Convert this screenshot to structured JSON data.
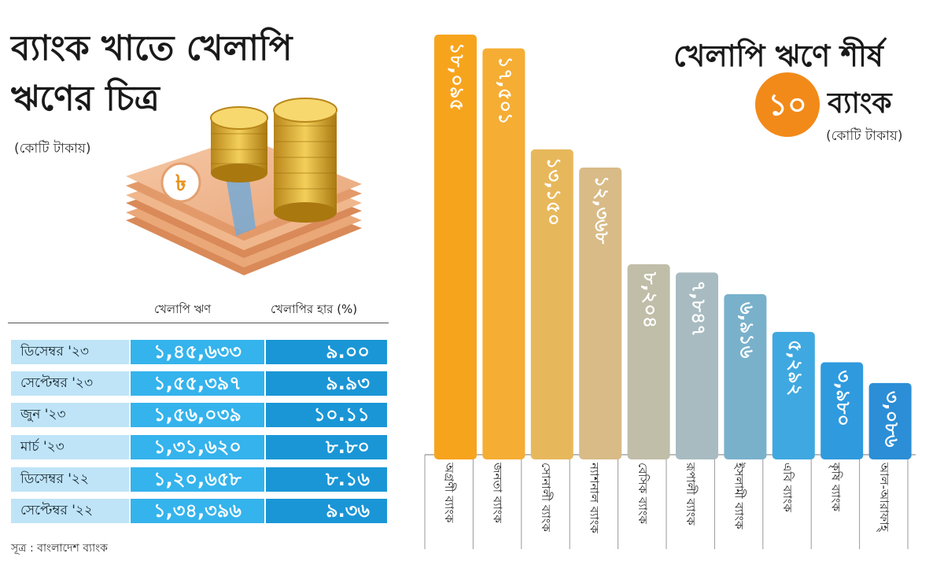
{
  "left": {
    "title_line1": "ব্যাংক খাতে খেলাপি",
    "title_line2": "ঋণের চিত্র",
    "unit": "(কোটি টাকায়)",
    "money_symbol": "৳",
    "col_amount": "খেলাপি ঋণ",
    "col_rate": "খেলাপির হার (%)",
    "rows": [
      {
        "period": "ডিসেম্বর '২৩",
        "amount": "১,৪৫,৬৩৩",
        "rate": "৯.০০"
      },
      {
        "period": "সেপ্টেম্বর '২৩",
        "amount": "১,৫৫,৩৯৭",
        "rate": "৯.৯৩"
      },
      {
        "period": "জুন '২৩",
        "amount": "১,৫৬,০৩৯",
        "rate": "১০.১১"
      },
      {
        "period": "মার্চ '২৩",
        "amount": "১,৩১,৬২০",
        "rate": "৮.৮০"
      },
      {
        "period": "ডিসেম্বর '২২",
        "amount": "১,২০,৬৫৮",
        "rate": "৮.১৬"
      },
      {
        "period": "সেপ্টেম্বর '২২",
        "amount": "১,৩৪,৩৯৬",
        "rate": "৯.৩৬"
      }
    ],
    "source": "সূত্র : বাংলাদেশ ব্যাংক"
  },
  "right": {
    "title_line1": "খেলাপি ঋণে শীর্ষ",
    "badge": "১০",
    "title_word": "ব্যাংক",
    "unit": "(কোটি টাকায়)"
  },
  "colors": {
    "table_period_bg": "#bfe4f7",
    "table_amount_bg": "#35b3ec",
    "table_rate_bg": "#1a96d6",
    "badge_orange": "#f28a1a"
  },
  "chart_data": {
    "type": "bar",
    "categories": [
      "অগ্রণী ব্যাংক",
      "জনতা ব্যাংক",
      "সোনালী ব্যাংক",
      "ন্যাশনাল ব্যাংক",
      "বেসিক ব্যাংক",
      "রূপালী ব্যাংক",
      "ইসলামী ব্যাংক",
      "এবি ব্যাংক",
      "কৃষি ব্যাংক",
      "আল-আরাফাহ্"
    ],
    "values": [
      18095,
      17501,
      13150,
      12368,
      8204,
      7847,
      6916,
      5292,
      3980,
      3086
    ],
    "value_labels": [
      "১৮,০৯৫",
      "১৭,৫০১",
      "১৩,১৫০",
      "১২,৩৬৮",
      "৮,২০৪",
      "৭,৮৪৭",
      "৬,৯১৬",
      "৫,২৯২",
      "৩,৯৮০",
      "৩,০৮৬"
    ],
    "bar_colors": [
      "#f7a41d",
      "#f5ad34",
      "#e7b85b",
      "#d8bb87",
      "#c0bda8",
      "#a8bbc1",
      "#79b1cb",
      "#3fa8e0",
      "#2f9ade",
      "#2b8ed6"
    ],
    "ylim": [
      0,
      18095
    ],
    "grid": false,
    "legend": "none"
  }
}
